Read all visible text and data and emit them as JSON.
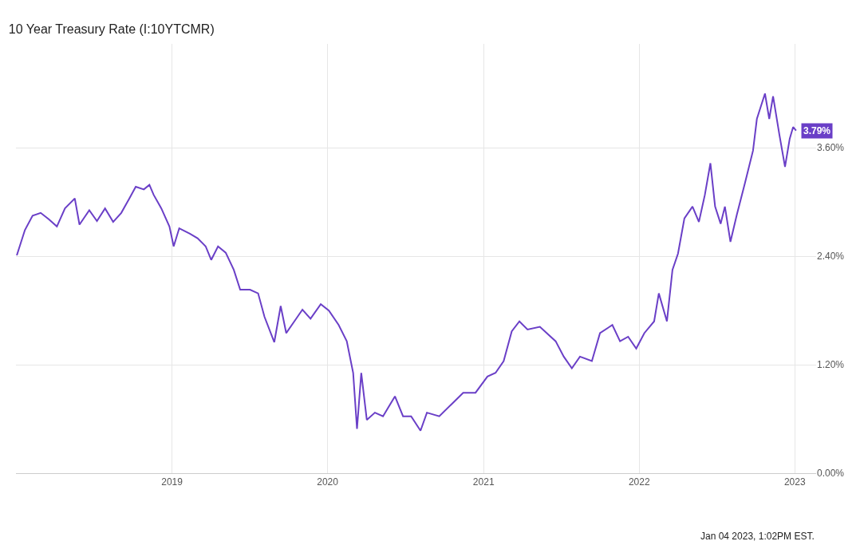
{
  "chart_data": {
    "type": "line",
    "title": "10 Year Treasury Rate (I:10YTCMR)",
    "x": [
      "2018-01-02",
      "2018-01-21",
      "2018-02-08",
      "2018-02-27",
      "2018-03-18",
      "2018-04-06",
      "2018-04-25",
      "2018-05-18",
      "2018-05-29",
      "2018-06-21",
      "2018-07-09",
      "2018-07-28",
      "2018-08-16",
      "2018-09-04",
      "2018-09-23",
      "2018-10-08",
      "2018-10-27",
      "2018-11-09",
      "2018-11-19",
      "2018-12-07",
      "2018-12-26",
      "2019-01-05",
      "2019-01-18",
      "2019-02-12",
      "2019-03-02",
      "2019-03-21",
      "2019-04-03",
      "2019-04-19",
      "2019-05-07",
      "2019-05-26",
      "2019-06-10",
      "2019-07-03",
      "2019-07-22",
      "2019-08-06",
      "2019-08-29",
      "2019-09-13",
      "2019-09-26",
      "2019-10-15",
      "2019-11-03",
      "2019-11-22",
      "2019-12-16",
      "2020-01-04",
      "2020-01-27",
      "2020-02-15",
      "2020-03-01",
      "2020-03-10",
      "2020-03-20",
      "2020-04-02",
      "2020-04-21",
      "2020-05-10",
      "2020-06-07",
      "2020-06-26",
      "2020-07-15",
      "2020-08-06",
      "2020-08-21",
      "2020-09-19",
      "2020-10-17",
      "2020-11-14",
      "2020-12-13",
      "2021-01-10",
      "2021-01-29",
      "2021-02-17",
      "2021-03-08",
      "2021-03-26",
      "2021-04-14",
      "2021-05-13",
      "2021-06-19",
      "2021-07-08",
      "2021-07-27",
      "2021-08-15",
      "2021-09-12",
      "2021-10-01",
      "2021-10-30",
      "2021-11-17",
      "2021-12-06",
      "2021-12-25",
      "2022-01-13",
      "2022-02-05",
      "2022-02-16",
      "2022-03-07",
      "2022-03-20",
      "2022-04-02",
      "2022-04-17",
      "2022-05-06",
      "2022-05-21",
      "2022-06-04",
      "2022-06-17",
      "2022-06-28",
      "2022-07-11",
      "2022-07-21",
      "2022-08-03",
      "2022-08-18",
      "2022-09-06",
      "2022-09-25",
      "2022-10-04",
      "2022-10-23",
      "2022-11-02",
      "2022-11-11",
      "2022-11-26",
      "2022-12-09",
      "2022-12-20",
      "2022-12-28",
      "2023-01-04"
    ],
    "series": [
      {
        "color": "#6a3fc7",
        "values": [
          2.41,
          2.69,
          2.85,
          2.88,
          2.81,
          2.73,
          2.93,
          3.04,
          2.75,
          2.91,
          2.79,
          2.93,
          2.78,
          2.88,
          3.04,
          3.17,
          3.14,
          3.19,
          3.08,
          2.93,
          2.73,
          2.51,
          2.71,
          2.65,
          2.6,
          2.51,
          2.36,
          2.51,
          2.44,
          2.25,
          2.03,
          2.03,
          1.99,
          1.73,
          1.45,
          1.85,
          1.55,
          1.68,
          1.81,
          1.71,
          1.87,
          1.8,
          1.64,
          1.46,
          1.11,
          0.49,
          1.11,
          0.59,
          0.67,
          0.63,
          0.85,
          0.63,
          0.63,
          0.47,
          0.67,
          0.63,
          0.76,
          0.89,
          0.89,
          1.07,
          1.11,
          1.24,
          1.57,
          1.68,
          1.59,
          1.62,
          1.46,
          1.29,
          1.16,
          1.29,
          1.24,
          1.55,
          1.64,
          1.46,
          1.51,
          1.38,
          1.55,
          1.68,
          1.99,
          1.68,
          2.25,
          2.43,
          2.82,
          2.95,
          2.78,
          3.08,
          3.43,
          2.95,
          2.76,
          2.95,
          2.56,
          2.86,
          3.21,
          3.57,
          3.92,
          4.2,
          3.92,
          4.17,
          3.74,
          3.39,
          3.7,
          3.83,
          3.79
        ],
        "value_labels": [
          null,
          null,
          null,
          null,
          null,
          null,
          null,
          null,
          null,
          null,
          null,
          null,
          null,
          null,
          null,
          null,
          null,
          null,
          null,
          null,
          null,
          null,
          null,
          null,
          null,
          null,
          null,
          null,
          null,
          null,
          null,
          null,
          null,
          null,
          null,
          null,
          null,
          null,
          null,
          null,
          null,
          null,
          null,
          null,
          null,
          null,
          null,
          null,
          null,
          null,
          null,
          null,
          null,
          null,
          null,
          null,
          null,
          null,
          null,
          null,
          null,
          null,
          null,
          null,
          null,
          null,
          null,
          null,
          null,
          null,
          null,
          null,
          null,
          null,
          null,
          null,
          null,
          null,
          null,
          null,
          null,
          null,
          null,
          null,
          null,
          null,
          null,
          null,
          null,
          null,
          null,
          null,
          null,
          null,
          null,
          null,
          null,
          null,
          null,
          null,
          null,
          null,
          "3.79%"
        ]
      }
    ],
    "xlim": [
      "2017-12-31",
      "2023-02-20"
    ],
    "xticks": [
      {
        "value": "2019-01-01",
        "label": "2019"
      },
      {
        "value": "2020-01-01",
        "label": "2020"
      },
      {
        "value": "2021-01-01",
        "label": "2021"
      },
      {
        "value": "2022-01-01",
        "label": "2022"
      },
      {
        "value": "2023-01-01",
        "label": "2023"
      }
    ],
    "ylim": [
      0,
      4.75
    ],
    "yticks": [
      {
        "value": 0,
        "label": "0.00%"
      },
      {
        "value": 1.2,
        "label": "1.20%"
      },
      {
        "value": 2.4,
        "label": "2.40%"
      },
      {
        "value": 3.6,
        "label": "3.60%"
      }
    ],
    "grid": true,
    "marker": "none",
    "line_style": "solid",
    "annotations": [
      "Jan 04 2023, 1:02PM EST."
    ]
  }
}
